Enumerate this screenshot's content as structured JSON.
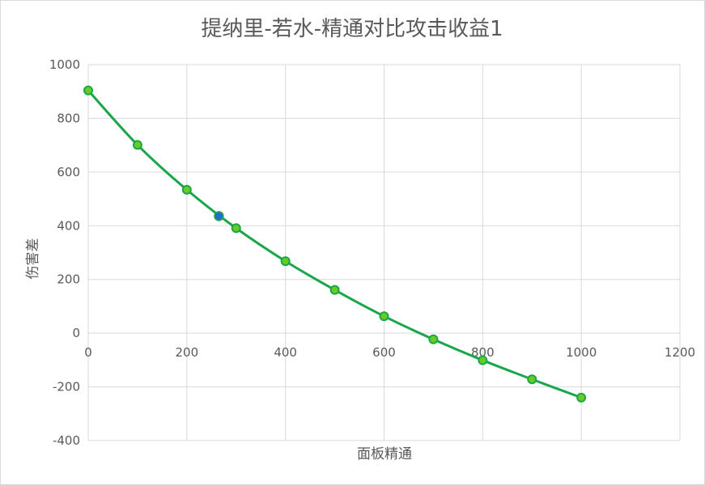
{
  "chart_data": {
    "type": "scatter",
    "title": "提纳里-若水-精通对比攻击收益1",
    "xlabel": "面板精通",
    "ylabel": "伤害差",
    "xlim": [
      0,
      1200
    ],
    "ylim": [
      -400,
      1000
    ],
    "x_ticks": [
      "0",
      "200",
      "400",
      "600",
      "800",
      "1000",
      "1200"
    ],
    "y_ticks": [
      "-400",
      "-200",
      "0",
      "200",
      "400",
      "600",
      "800",
      "1000"
    ],
    "grid": true,
    "series": [
      {
        "color": "#1aa64a",
        "marker_color": "#66cc22",
        "points": [
          {
            "x": 0,
            "y": 904
          },
          {
            "x": 100,
            "y": 701
          },
          {
            "x": 200,
            "y": 534
          },
          {
            "x": 300,
            "y": 391
          },
          {
            "x": 400,
            "y": 268
          },
          {
            "x": 500,
            "y": 161
          },
          {
            "x": 600,
            "y": 63
          },
          {
            "x": 700,
            "y": -23
          },
          {
            "x": 800,
            "y": -101
          },
          {
            "x": 900,
            "y": -172
          },
          {
            "x": 1000,
            "y": -240
          }
        ]
      }
    ],
    "highlight_point": {
      "x": 265,
      "y": 436,
      "color": "#1e6fd0"
    }
  }
}
